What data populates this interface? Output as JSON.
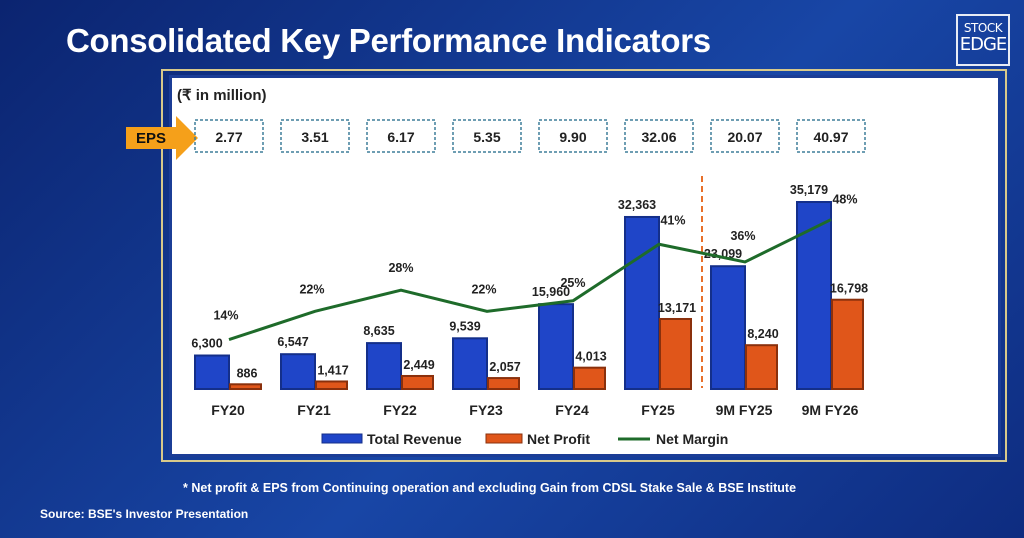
{
  "title": "Consolidated Key Performance Indicators",
  "logo": {
    "line1": "STOCK",
    "line2": "EDGE"
  },
  "unit": "(₹ in million)",
  "eps_label": "EPS",
  "footnote": "* Net profit & EPS from Continuing operation and excluding Gain from CDSL Stake Sale & BSE Institute",
  "source": "Source: BSE's Investor Presentation",
  "chart_data": {
    "type": "bar",
    "categories": [
      "FY20",
      "FY21",
      "FY22",
      "FY23",
      "FY24",
      "FY25",
      "9M FY25",
      "9M FY26"
    ],
    "eps": [
      "2.77",
      "3.51",
      "6.17",
      "5.35",
      "9.90",
      "32.06",
      "20.07",
      "40.97"
    ],
    "series": [
      {
        "name": "Total Revenue",
        "type": "bar",
        "color": "#1f45c8",
        "values": [
          6300,
          6547,
          8635,
          9539,
          15960,
          32363,
          23099,
          35179
        ],
        "labels": [
          "6,300",
          "6,547",
          "8,635",
          "9,539",
          "15,960",
          "32,363",
          "23,099",
          "35,179"
        ]
      },
      {
        "name": "Net Profit",
        "type": "bar",
        "color": "#e0561a",
        "values": [
          886,
          1417,
          2449,
          2057,
          4013,
          13171,
          8240,
          16798
        ],
        "labels": [
          "886",
          "1,417",
          "2,449",
          "2,057",
          "4,013",
          "13,171",
          "8,240",
          "16,798"
        ]
      },
      {
        "name": "Net Margin",
        "type": "line",
        "color": "#1e6b2a",
        "values": [
          14,
          22,
          28,
          22,
          25,
          41,
          36,
          48
        ],
        "labels": [
          "14%",
          "22%",
          "28%",
          "22%",
          "25%",
          "41%",
          "36%",
          "48%"
        ]
      }
    ],
    "divider_before": "9M FY25",
    "legend": "bottom",
    "grid": false
  }
}
